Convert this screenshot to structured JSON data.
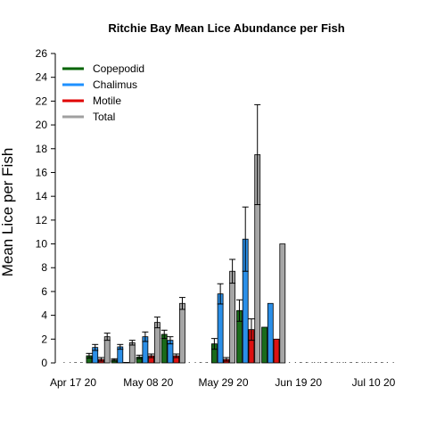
{
  "chart_data": {
    "type": "bar",
    "title": "Ritchie Bay Mean Lice Abundance per Fish",
    "xlabel": "",
    "ylabel": "Mean Lice per Fish",
    "ylim": [
      0,
      26
    ],
    "yticks": [
      0,
      2,
      4,
      6,
      8,
      10,
      12,
      14,
      16,
      18,
      20,
      22,
      24,
      26
    ],
    "xlim": [
      "2020-04-10",
      "2020-07-14"
    ],
    "xtick_labels": [
      "Apr 17 20",
      "May 08 20",
      "May 29 20",
      "Jun 19 20",
      "Jul 10 20"
    ],
    "xtick_dates": [
      "2020-04-17",
      "2020-05-08",
      "2020-05-29",
      "2020-06-19",
      "2020-07-10"
    ],
    "legend_position": "top-left",
    "grid": false,
    "series": [
      {
        "name": "Copepodid",
        "color": "#1a6b1a",
        "legend_color": "#006400"
      },
      {
        "name": "Chalimus",
        "color": "#2b8fe8",
        "legend_color": "#1e90ff"
      },
      {
        "name": "Motile",
        "color": "#dd1111",
        "legend_color": "#e00000"
      },
      {
        "name": "Total",
        "color": "#a6a6a6",
        "legend_color": "#a0a0a0"
      }
    ],
    "groups": [
      {
        "date": "2020-04-24",
        "values": [
          0.6,
          1.3,
          0.3,
          2.2
        ],
        "errors": [
          0.2,
          0.25,
          0.15,
          0.3
        ]
      },
      {
        "date": "2020-05-01",
        "values": [
          0.25,
          1.35,
          0.0,
          1.7
        ],
        "errors": [
          0.1,
          0.2,
          0.0,
          0.2
        ]
      },
      {
        "date": "2020-05-08",
        "values": [
          0.5,
          2.2,
          0.6,
          3.4
        ],
        "errors": [
          0.15,
          0.4,
          0.15,
          0.45
        ]
      },
      {
        "date": "2020-05-15",
        "values": [
          2.4,
          1.9,
          0.6,
          5.0
        ],
        "errors": [
          0.35,
          0.3,
          0.15,
          0.5
        ]
      },
      {
        "date": "2020-05-29",
        "values": [
          1.6,
          5.8,
          0.3,
          7.7
        ],
        "errors": [
          0.45,
          0.85,
          0.15,
          1.0
        ]
      },
      {
        "date": "2020-06-05",
        "values": [
          4.4,
          10.4,
          2.8,
          17.5
        ],
        "errors": [
          0.9,
          2.7,
          0.9,
          4.2
        ]
      },
      {
        "date": "2020-06-12",
        "values": [
          3.0,
          5.0,
          2.0,
          10.0
        ],
        "errors": [
          0,
          0,
          0,
          0
        ]
      }
    ],
    "zero_markers": [
      "2020-04-17",
      "2020-04-20",
      "2020-05-22",
      "2020-05-25",
      "2020-06-19",
      "2020-06-22",
      "2020-06-26",
      "2020-06-29",
      "2020-07-03",
      "2020-07-06",
      "2020-07-10",
      "2020-07-13"
    ]
  }
}
